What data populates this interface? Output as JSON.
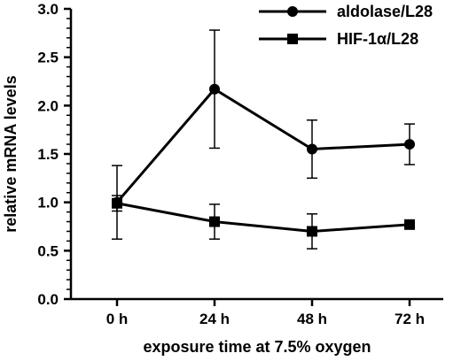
{
  "chart_data": {
    "type": "line",
    "title": "",
    "xlabel": "exposure time at 7.5% oxygen",
    "ylabel": "relative mRNA levels",
    "categories": [
      "0 h",
      "24 h",
      "48 h",
      "72 h"
    ],
    "ylim": [
      0,
      3.0
    ],
    "yticks": [
      "0.0",
      "0.5",
      "1.0",
      "1.5",
      "2.0",
      "2.5",
      "3.0"
    ],
    "y_minor_step": 0.1,
    "grid": false,
    "legend_position": "top-right",
    "series": [
      {
        "name": "aldolase/L28",
        "marker": "circle",
        "color": "#000000",
        "values": [
          1.0,
          2.17,
          1.55,
          1.6
        ],
        "error": [
          0.38,
          0.61,
          0.3,
          0.21
        ]
      },
      {
        "name": "HIF-1α/L28",
        "marker": "square",
        "color": "#000000",
        "values": [
          0.99,
          0.8,
          0.7,
          0.77
        ],
        "error": [
          0.08,
          0.18,
          0.18,
          0.04
        ]
      }
    ]
  }
}
